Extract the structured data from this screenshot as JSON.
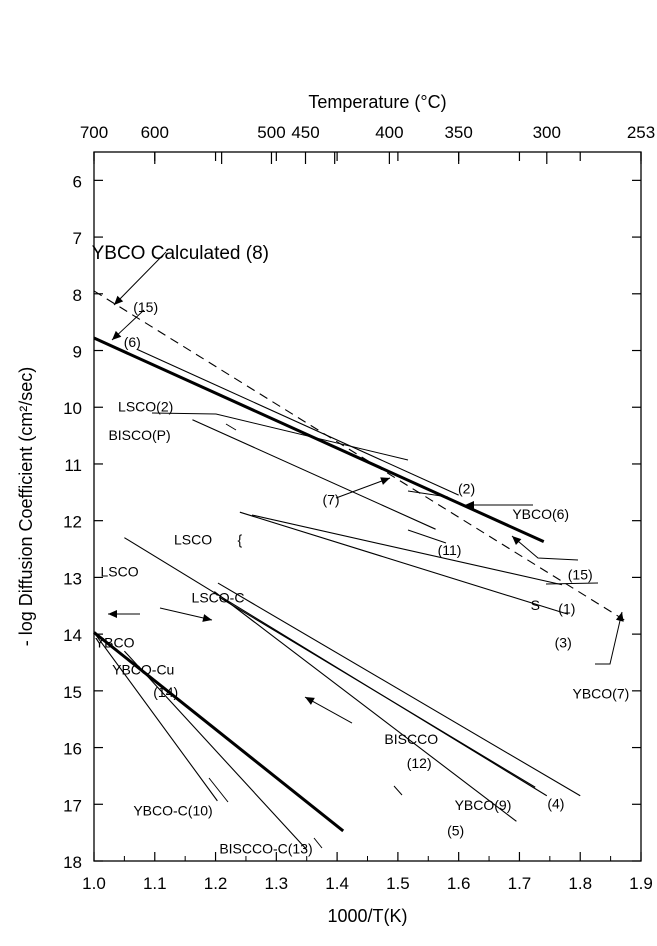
{
  "chart_data": {
    "type": "line",
    "xlabel": "1000/T(K)",
    "ylabel": "- log Diffusion Coefficient (cm²/sec)",
    "top_axis_label": "Temperature (°C)",
    "xlim": [
      1.0,
      1.9
    ],
    "ylim": [
      18,
      5.5
    ],
    "x_ticks": [
      1.0,
      1.1,
      1.2,
      1.3,
      1.4,
      1.5,
      1.6,
      1.7,
      1.8,
      1.9
    ],
    "x_tick_labels": [
      "1.0",
      "1.1",
      "1.2",
      "1.3",
      "1.4",
      "1.5",
      "1.6",
      "1.7",
      "1.8",
      "1.9"
    ],
    "y_ticks": [
      6,
      7,
      8,
      9,
      10,
      11,
      12,
      13,
      14,
      15,
      16,
      17,
      18
    ],
    "y_tick_labels": [
      "6",
      "7",
      "8",
      "9",
      "10",
      "11",
      "12",
      "13",
      "14",
      "15",
      "16",
      "17",
      "18"
    ],
    "top_ticks": [
      {
        "x": 1.0,
        "label": "700"
      },
      {
        "x": 1.1,
        "label": "600"
      },
      {
        "x": 1.21,
        "label": ""
      },
      {
        "x": 1.292,
        "label": "500"
      },
      {
        "x": 1.348,
        "label": "450"
      },
      {
        "x": 1.396,
        "label": ""
      },
      {
        "x": 1.486,
        "label": "400"
      },
      {
        "x": 1.6,
        "label": "350"
      },
      {
        "x": 1.745,
        "label": "300"
      },
      {
        "x": 1.9,
        "label": "253"
      }
    ],
    "series": [
      {
        "x": [
          1.0,
          1.88
        ],
        "y": [
          7.95,
          13.8
        ],
        "dash": true,
        "bold": false
      },
      {
        "x": [
          1.0,
          1.74
        ],
        "y": [
          8.78,
          12.37
        ],
        "dash": false,
        "bold": true
      },
      {
        "x": [
          1.071,
          1.6
        ],
        "y": [
          8.98,
          11.55
        ],
        "dash": false,
        "bold": false
      },
      {
        "x": [
          1.162,
          1.562
        ],
        "y": [
          10.22,
          12.15
        ],
        "dash": false,
        "bold": false
      },
      {
        "x": [
          1.26,
          1.77
        ],
        "y": [
          11.9,
          13.13
        ],
        "dash": false,
        "bold": false
      },
      {
        "x": [
          1.24,
          1.78
        ],
        "y": [
          11.85,
          13.65
        ],
        "dash": false,
        "bold": false
      },
      {
        "x": [
          1.204,
          1.8
        ],
        "y": [
          13.1,
          16.85
        ],
        "dash": false,
        "bold": false
      },
      {
        "x": [
          1.198,
          1.695
        ],
        "y": [
          13.25,
          17.3
        ],
        "dash": false,
        "bold": false
      },
      {
        "x": [
          1.206,
          1.726
        ],
        "y": [
          13.35,
          16.7
        ],
        "dash": false,
        "bold": false
      },
      {
        "x": [
          1.05,
          1.745
        ],
        "y": [
          12.3,
          16.85
        ],
        "dash": false,
        "bold": false
      },
      {
        "x": [
          1.0,
          1.41
        ],
        "y": [
          13.97,
          17.47
        ],
        "dash": false,
        "bold": true
      },
      {
        "x": [
          1.05,
          1.35
        ],
        "y": [
          14.3,
          17.8
        ],
        "dash": false,
        "bold": false
      },
      {
        "x": [
          1.0,
          1.203
        ],
        "y": [
          13.97,
          16.94
        ],
        "dash": false,
        "bold": false
      }
    ],
    "annotations": [
      {
        "text": "YBCO Calculated (8)",
        "x": 1.142,
        "y": 7.3,
        "big": true
      },
      {
        "text": "(15)",
        "x": 1.085,
        "y": 8.23
      },
      {
        "text": "(6)",
        "x": 1.063,
        "y": 8.85
      },
      {
        "text": "LSCO(2)",
        "x": 1.085,
        "y": 9.99
      },
      {
        "text": "BISCO(P)",
        "x": 1.075,
        "y": 10.49
      },
      {
        "text": "(7)",
        "x": 1.39,
        "y": 11.63
      },
      {
        "text": "(2)",
        "x": 1.613,
        "y": 11.43
      },
      {
        "text": "YBCO(6)",
        "x": 1.735,
        "y": 11.88
      },
      {
        "text": "LSCO",
        "x": 1.163,
        "y": 12.33
      },
      {
        "text": "{",
        "x": 1.24,
        "y": 12.33
      },
      {
        "text": "(11)",
        "x": 1.585,
        "y": 12.52
      },
      {
        "text": "(15)",
        "x": 1.8,
        "y": 12.95
      },
      {
        "text": "LSCO",
        "x": 1.042,
        "y": 12.9
      },
      {
        "text": "LSCO-C",
        "x": 1.204,
        "y": 13.35
      },
      {
        "text": "S",
        "x": 1.726,
        "y": 13.49
      },
      {
        "text": "(1)",
        "x": 1.778,
        "y": 13.55
      },
      {
        "text": "YBCO",
        "x": 1.034,
        "y": 14.15
      },
      {
        "text": "(3)",
        "x": 1.772,
        "y": 14.15
      },
      {
        "text": "YBCO-Cu",
        "x": 1.081,
        "y": 14.62
      },
      {
        "text": "(14)",
        "x": 1.118,
        "y": 15.02
      },
      {
        "text": "YBCO(7)",
        "x": 1.834,
        "y": 15.05
      },
      {
        "text": "BISCCO",
        "x": 1.522,
        "y": 15.85
      },
      {
        "text": "(12)",
        "x": 1.535,
        "y": 16.27
      },
      {
        "text": "(4)",
        "x": 1.76,
        "y": 16.99
      },
      {
        "text": "YBCO(9)",
        "x": 1.64,
        "y": 17.01
      },
      {
        "text": "YBCO-C(10)",
        "x": 1.13,
        "y": 17.11
      },
      {
        "text": "(5)",
        "x": 1.595,
        "y": 17.46
      },
      {
        "text": "BISCCO-C(13)",
        "x": 1.283,
        "y": 17.78
      }
    ],
    "grid": false
  }
}
